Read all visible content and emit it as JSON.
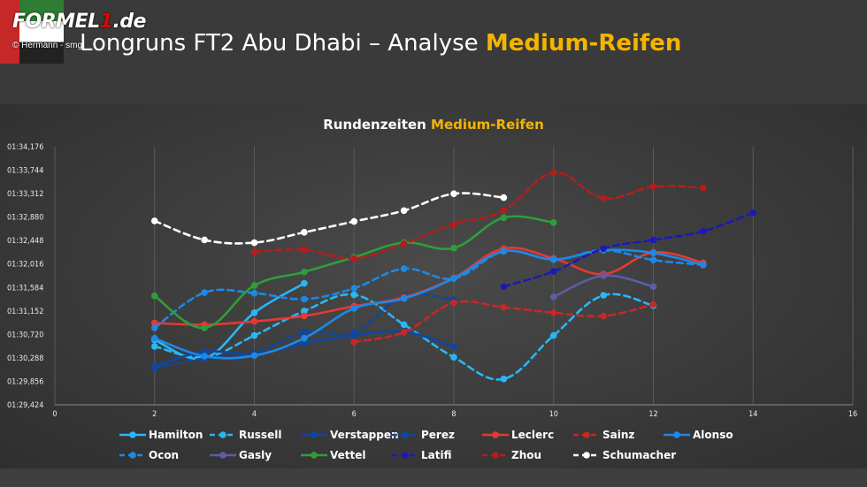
{
  "header": {
    "logo_text_a": "FORMEL",
    "logo_text_one": "1",
    "logo_text_b": ".de",
    "credit": "© Hermann - smg",
    "title_main": "Longruns FT2 Abu Dhabi – Analyse ",
    "title_highlight": "Medium-Reifen",
    "flag_colors": [
      "#c62828",
      "#2e7d32",
      "#ffffff",
      "#222222"
    ]
  },
  "chart_data": {
    "type": "line",
    "title": "Rundenzeiten ",
    "title_highlight": "Medium-Reifen",
    "highlight_color": "#f5b400",
    "xlim": [
      0,
      16
    ],
    "xticks": [
      0,
      2,
      4,
      6,
      8,
      10,
      12,
      14,
      16
    ],
    "ylim": [
      89.424,
      94.176
    ],
    "yticks": [
      89.424,
      89.856,
      90.288,
      90.72,
      91.152,
      91.584,
      92.016,
      92.448,
      92.88,
      93.312,
      93.744,
      94.176
    ],
    "ytick_labels": [
      "01:29,424",
      "01:29,856",
      "01:30,288",
      "01:30,720",
      "01:31,152",
      "01:31,584",
      "01:32,016",
      "01:32,448",
      "01:32,880",
      "01:33,312",
      "01:33,744",
      "01:34,176"
    ],
    "grid": "vertical",
    "legend_position": "bottom",
    "series": [
      {
        "name": "Hamilton",
        "color": "#29b6f6",
        "dash": false,
        "x": [
          2,
          3,
          4,
          5
        ],
        "y": [
          90.62,
          90.28,
          91.12,
          91.66
        ]
      },
      {
        "name": "Russell",
        "color": "#29b6f6",
        "dash": true,
        "x": [
          2,
          3,
          4,
          5,
          6,
          7,
          8,
          9,
          10,
          11,
          12
        ],
        "y": [
          90.5,
          90.3,
          90.7,
          91.15,
          91.45,
          90.9,
          90.3,
          89.9,
          90.7,
          91.44,
          91.25
        ]
      },
      {
        "name": "Verstappen",
        "color": "#0d47a1",
        "dash": false,
        "x": [
          2,
          3,
          4,
          5,
          6,
          7,
          8
        ],
        "y": [
          90.14,
          90.4,
          90.36,
          90.56,
          90.7,
          90.77,
          90.49
        ]
      },
      {
        "name": "Perez",
        "color": "#0d47a1",
        "dash": true,
        "x": [
          2,
          3,
          4,
          5,
          6,
          7,
          8
        ],
        "y": [
          90.1,
          90.28,
          90.37,
          90.76,
          90.76,
          91.42,
          91.36
        ]
      },
      {
        "name": "Leclerc",
        "color": "#e53935",
        "dash": false,
        "x": [
          2,
          3,
          4,
          5,
          6,
          7,
          8,
          9,
          10,
          11,
          12,
          13
        ],
        "y": [
          90.93,
          90.9,
          90.96,
          91.06,
          91.24,
          91.4,
          91.76,
          92.3,
          92.12,
          91.83,
          92.23,
          92.04
        ]
      },
      {
        "name": "Sainz",
        "color": "#c62828",
        "dash": true,
        "x": [
          6,
          7,
          8,
          9,
          10,
          11,
          12
        ],
        "y": [
          90.58,
          90.76,
          91.3,
          91.22,
          91.12,
          91.06,
          91.27
        ]
      },
      {
        "name": "Alonso",
        "color": "#1e88e5",
        "dash": false,
        "x": [
          2,
          3,
          4,
          5,
          6,
          7,
          8,
          9,
          10,
          11,
          12,
          13
        ],
        "y": [
          90.65,
          90.32,
          90.33,
          90.65,
          91.2,
          91.38,
          91.75,
          92.25,
          92.1,
          92.27,
          92.22,
          92.0
        ]
      },
      {
        "name": "Ocon",
        "color": "#1e88e5",
        "dash": true,
        "x": [
          2,
          3,
          4,
          5,
          6,
          7,
          8,
          9,
          10,
          11,
          12,
          13
        ],
        "y": [
          90.84,
          91.49,
          91.48,
          91.37,
          91.57,
          91.93,
          91.75,
          92.25,
          92.1,
          92.27,
          92.09,
          92.0
        ]
      },
      {
        "name": "Gasly",
        "color": "#5c5ca8",
        "dash": false,
        "x": [
          10,
          11,
          12
        ],
        "y": [
          91.41,
          91.8,
          91.6
        ]
      },
      {
        "name": "Vettel",
        "color": "#2e9e3a",
        "dash": false,
        "x": [
          2,
          3,
          4,
          5,
          6,
          7,
          8,
          9,
          10
        ],
        "y": [
          91.43,
          90.84,
          91.62,
          91.87,
          92.14,
          92.41,
          92.31,
          92.87,
          92.78
        ]
      },
      {
        "name": "Latifi",
        "color": "#1a1ab8",
        "dash": true,
        "x": [
          9,
          10,
          11,
          12,
          13,
          14
        ],
        "y": [
          91.6,
          91.88,
          92.3,
          92.46,
          92.62,
          92.96
        ]
      },
      {
        "name": "Zhou",
        "color": "#b71c1c",
        "dash": true,
        "x": [
          4,
          5,
          6,
          7,
          8,
          9,
          10,
          11,
          12,
          13
        ],
        "y": [
          92.24,
          92.28,
          92.12,
          92.39,
          92.75,
          93.0,
          93.7,
          93.23,
          93.44,
          93.42
        ]
      },
      {
        "name": "Schumacher",
        "color": "#ffffff",
        "dash": true,
        "x": [
          2,
          3,
          4,
          5,
          6,
          7,
          8,
          9
        ],
        "y": [
          92.81,
          92.46,
          92.41,
          92.6,
          92.8,
          93.0,
          93.31,
          93.24
        ]
      }
    ]
  }
}
